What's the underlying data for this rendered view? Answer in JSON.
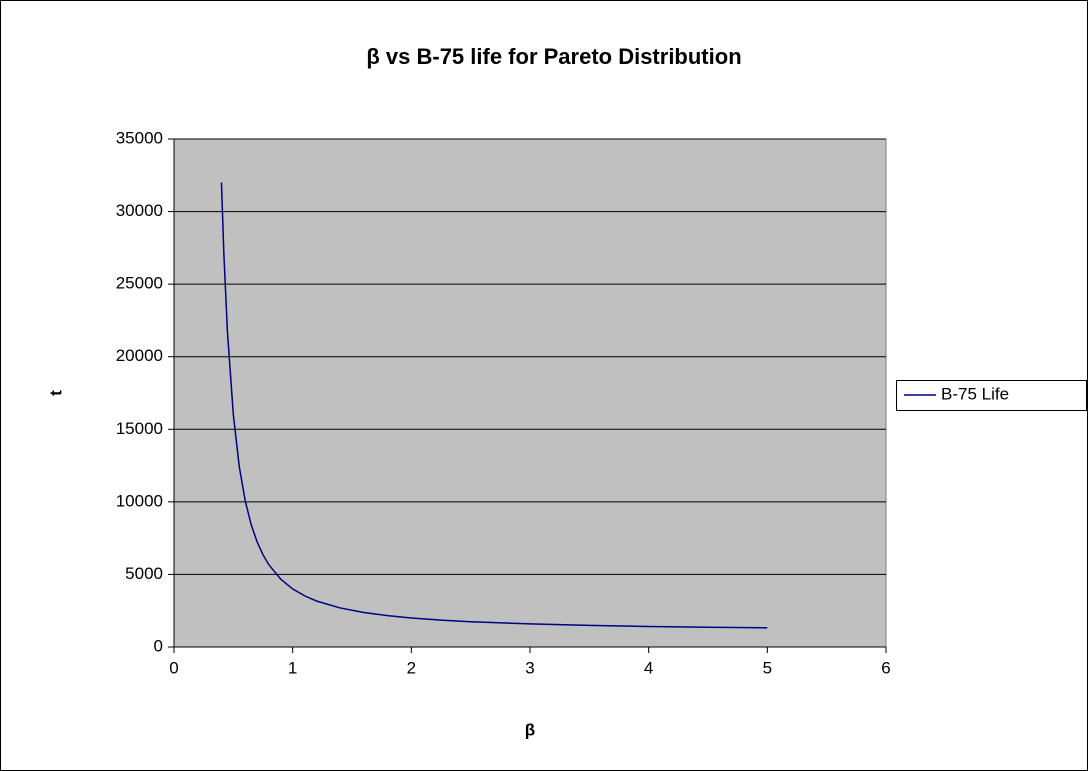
{
  "chart_data": {
    "type": "line",
    "title": "β vs B-75 life for Pareto Distribution",
    "x_label": "β",
    "y_label": "t",
    "x": [
      0.4,
      0.42,
      0.45,
      0.5,
      0.55,
      0.6,
      0.65,
      0.7,
      0.75,
      0.8,
      0.9,
      1,
      1.1,
      1.2,
      1.4,
      1.6,
      1.8,
      2,
      2.25,
      2.5,
      3,
      3.5,
      4,
      4.5,
      5
    ],
    "series": [
      {
        "name": "B-75 Life",
        "color": "#000080",
        "values": [
          32000,
          27130,
          21770,
          16000,
          12430,
          10080,
          8440,
          7250,
          6350,
          5660,
          4670,
          4000,
          3530,
          3170,
          2690,
          2380,
          2160,
          2000,
          1850,
          1740,
          1590,
          1490,
          1414,
          1360,
          1320
        ]
      }
    ],
    "xlim": [
      0,
      6
    ],
    "xticks": [
      0,
      1,
      2,
      3,
      4,
      5,
      6
    ],
    "ylim": [
      0,
      35000
    ],
    "yticks": [
      0,
      5000,
      10000,
      15000,
      20000,
      25000,
      30000,
      35000
    ],
    "grid": true,
    "legend": "right",
    "plot_background": "#c0c0c0"
  }
}
